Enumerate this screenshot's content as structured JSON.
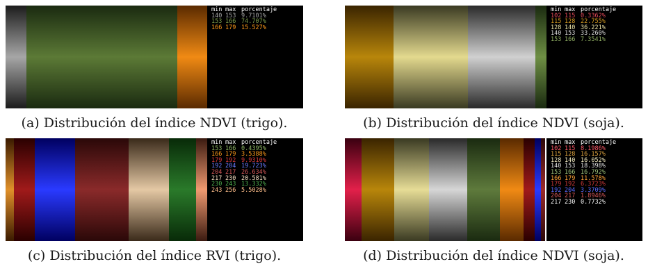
{
  "header": {
    "min": "min",
    "max": "max",
    "pct": "porcentaje"
  },
  "chart_data": [
    {
      "type": "table",
      "caption": "(a) Distribución del índice NDVI (trigo).",
      "columns": [
        "min",
        "max",
        "porcentaje"
      ],
      "rows": [
        {
          "min": "140",
          "max": "153",
          "pct": "9.7101%",
          "color": "#a8a8a8"
        },
        {
          "min": "153",
          "max": "166",
          "pct": "74.707%",
          "color": "#7a9a4a"
        },
        {
          "min": "166",
          "max": "179",
          "pct": "15.527%",
          "color": "#ff9a1a"
        }
      ]
    },
    {
      "type": "table",
      "caption": "(b) Distribución del índice NDVI (soja).",
      "columns": [
        "min",
        "max",
        "porcentaje"
      ],
      "rows": [
        {
          "min": "102",
          "max": "115",
          "pct": "0.3362%",
          "color": "#e84b5a"
        },
        {
          "min": "115",
          "max": "128",
          "pct": "22.755%",
          "color": "#d39a22"
        },
        {
          "min": "128",
          "max": "140",
          "pct": "36.221%",
          "color": "#efe6a8"
        },
        {
          "min": "140",
          "max": "153",
          "pct": "33.260%",
          "color": "#d8d8d8"
        },
        {
          "min": "153",
          "max": "166",
          "pct": "7.3541%",
          "color": "#8fae62"
        }
      ]
    },
    {
      "type": "table",
      "caption": "(c) Distribución del índice RVI (trigo).",
      "columns": [
        "min",
        "max",
        "porcentaje"
      ],
      "rows": [
        {
          "min": "153",
          "max": "166",
          "pct": "0.4395%",
          "color": "#8fb866"
        },
        {
          "min": "166",
          "max": "179",
          "pct": "3.5388%",
          "color": "#ff9a1a"
        },
        {
          "min": "179",
          "max": "192",
          "pct": "9.9310%",
          "color": "#d23a3a"
        },
        {
          "min": "192",
          "max": "204",
          "pct": "19.723%",
          "color": "#6a7cff"
        },
        {
          "min": "204",
          "max": "217",
          "pct": "26.634%",
          "color": "#d85a5a"
        },
        {
          "min": "217",
          "max": "230",
          "pct": "20.581%",
          "color": "#f3dcc0"
        },
        {
          "min": "230",
          "max": "243",
          "pct": "13.332%",
          "color": "#4fb04f"
        },
        {
          "min": "243",
          "max": "256",
          "pct": "5.5028%",
          "color": "#ffbe8a"
        }
      ]
    },
    {
      "type": "table",
      "caption": "(d) Distribución del índice NDVI (soja).",
      "columns": [
        "min",
        "max",
        "porcentaje"
      ],
      "rows": [
        {
          "min": "102",
          "max": "115",
          "pct": "8.1986%",
          "color": "#ff5a6a"
        },
        {
          "min": "115",
          "max": "128",
          "pct": "16.157%",
          "color": "#e0a640"
        },
        {
          "min": "128",
          "max": "140",
          "pct": "16.052%",
          "color": "#f3ecc2"
        },
        {
          "min": "140",
          "max": "153",
          "pct": "18.398%",
          "color": "#e6e6e6"
        },
        {
          "min": "153",
          "max": "166",
          "pct": "16.792%",
          "color": "#9ec27a"
        },
        {
          "min": "166",
          "max": "179",
          "pct": "11.578%",
          "color": "#ffa53a"
        },
        {
          "min": "179",
          "max": "192",
          "pct": "6.3723%",
          "color": "#d13a3a"
        },
        {
          "min": "192",
          "max": "204",
          "pct": "3.3709%",
          "color": "#5a6cff"
        },
        {
          "min": "204",
          "max": "217",
          "pct": "1.8946%",
          "color": "#d85a5a"
        },
        {
          "min": "217",
          "max": "230",
          "pct": "0.7732%",
          "color": "#ffffff"
        }
      ]
    }
  ]
}
